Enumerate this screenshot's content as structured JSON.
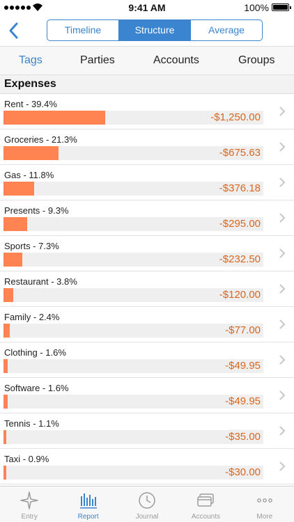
{
  "status": {
    "time": "9:41 AM",
    "battery": "100%"
  },
  "segments": [
    "Timeline",
    "Structure",
    "Average"
  ],
  "tabs": [
    "Tags",
    "Parties",
    "Accounts",
    "Groups"
  ],
  "section": "Expenses",
  "rows": [
    {
      "label": "Rent - 39.4%",
      "amount": "-$1,250.00",
      "share": 0.394
    },
    {
      "label": "Groceries - 21.3%",
      "amount": "-$675.63",
      "share": 0.213
    },
    {
      "label": "Gas - 11.8%",
      "amount": "-$376.18",
      "share": 0.118
    },
    {
      "label": "Presents - 9.3%",
      "amount": "-$295.00",
      "share": 0.093
    },
    {
      "label": "Sports - 7.3%",
      "amount": "-$232.50",
      "share": 0.073
    },
    {
      "label": "Restaurant - 3.8%",
      "amount": "-$120.00",
      "share": 0.038
    },
    {
      "label": "Family - 2.4%",
      "amount": "-$77.00",
      "share": 0.024
    },
    {
      "label": "Clothing - 1.6%",
      "amount": "-$49.95",
      "share": 0.016
    },
    {
      "label": "Software - 1.6%",
      "amount": "-$49.95",
      "share": 0.016
    },
    {
      "label": "Tennis - 1.1%",
      "amount": "-$35.00",
      "share": 0.011
    },
    {
      "label": "Taxi - 0.9%",
      "amount": "-$30.00",
      "share": 0.009
    }
  ],
  "tabbar": [
    {
      "label": "Entry",
      "icon": "entry-icon"
    },
    {
      "label": "Report",
      "icon": "report-icon"
    },
    {
      "label": "Journal",
      "icon": "journal-icon"
    },
    {
      "label": "Accounts",
      "icon": "accounts-icon"
    },
    {
      "label": "More",
      "icon": "more-icon"
    }
  ],
  "colors": {
    "accent": "#3a84d0",
    "bar": "#ff8452",
    "amount": "#d9661f"
  }
}
